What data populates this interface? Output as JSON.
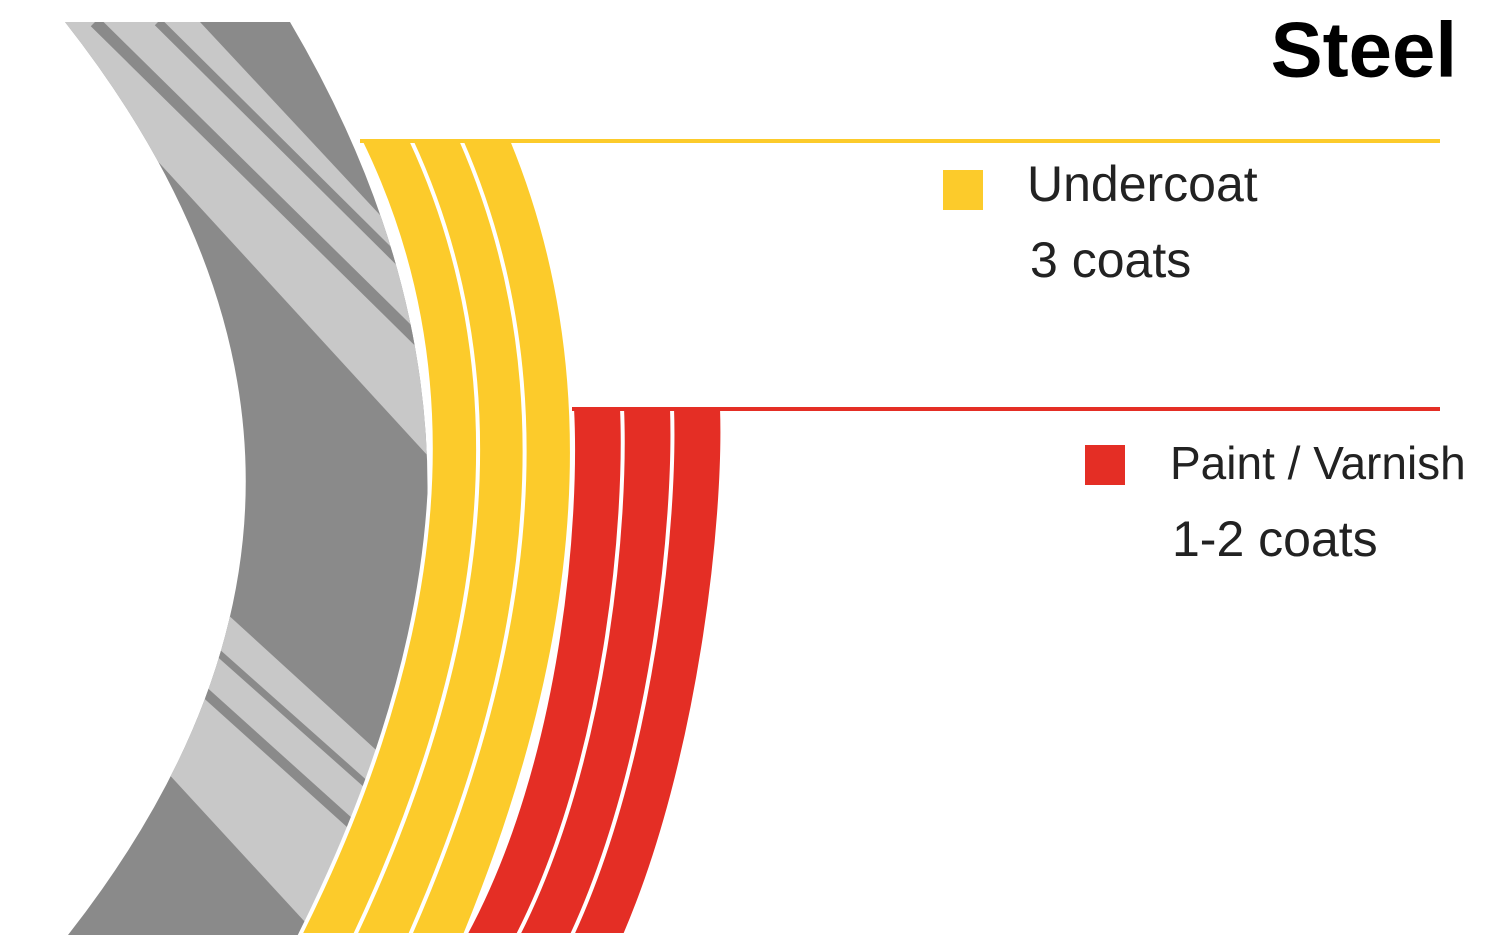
{
  "title": "Steel",
  "layers": [
    {
      "label": "Undercoat",
      "detail": "3 coats"
    },
    {
      "label": "Paint / Varnish",
      "detail": "1-2 coats"
    }
  ]
}
